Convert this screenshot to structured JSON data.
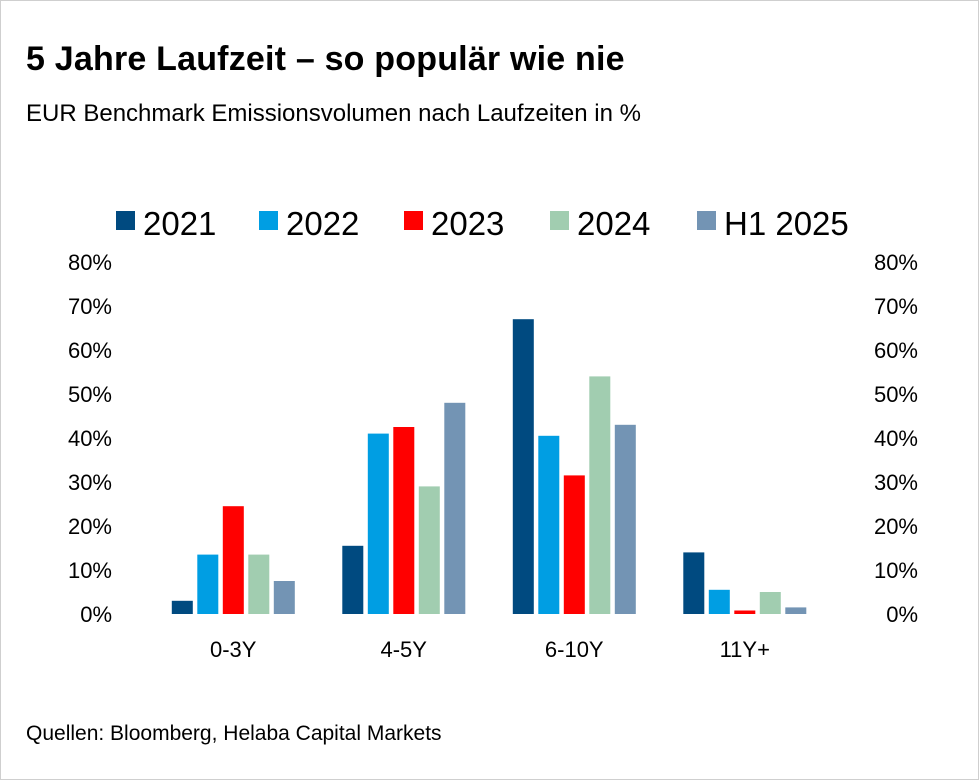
{
  "chart_data": {
    "type": "bar",
    "title": "5 Jahre Laufzeit – so populär wie nie",
    "subtitle": "EUR Benchmark Emissionsvolumen nach Laufzeiten in %",
    "source": "Quellen: Bloomberg, Helaba Capital Markets",
    "xlabel": "",
    "ylabel": "",
    "ylim": [
      0,
      80
    ],
    "yticks": [
      0,
      10,
      20,
      30,
      40,
      50,
      60,
      70,
      80
    ],
    "ytick_labels": [
      "0%",
      "10%",
      "20%",
      "30%",
      "40%",
      "50%",
      "60%",
      "70%",
      "80%"
    ],
    "grid": false,
    "legend_position": "top",
    "categories": [
      "0-3Y",
      "4-5Y",
      "6-10Y",
      "11Y+"
    ],
    "series": [
      {
        "name": "2021",
        "color": "#004a80",
        "values": [
          3,
          15.5,
          67,
          14
        ]
      },
      {
        "name": "2022",
        "color": "#009ee3",
        "values": [
          13.5,
          41,
          40.5,
          5.5
        ]
      },
      {
        "name": "2023",
        "color": "#ff0000",
        "values": [
          24.5,
          42.5,
          31.5,
          0.8
        ]
      },
      {
        "name": "2024",
        "color": "#a1cdb0",
        "values": [
          13.5,
          29,
          54,
          5
        ]
      },
      {
        "name": "H1 2025",
        "color": "#7394b4",
        "values": [
          7.5,
          48,
          43,
          1.5
        ]
      }
    ]
  }
}
